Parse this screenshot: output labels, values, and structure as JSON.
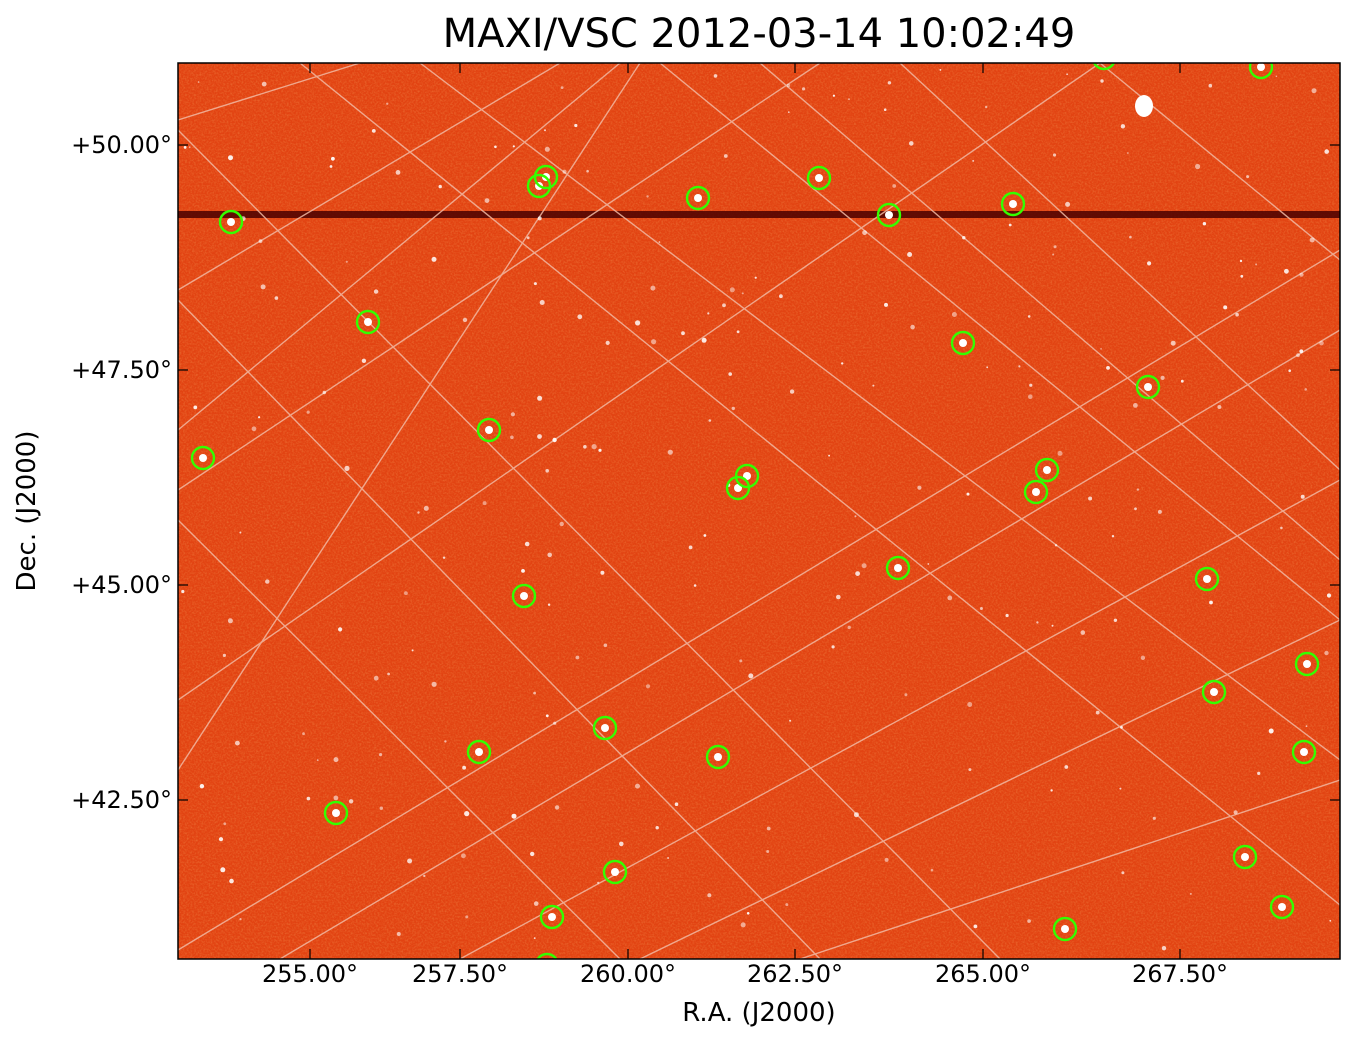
{
  "figure": {
    "title": "MAXI/VSC 2012-03-14 10:02:49",
    "xlabel": "R.A. (J2000)",
    "ylabel": "Dec. (J2000)",
    "xticks": [
      "255.00°",
      "257.50°",
      "260.00°",
      "262.50°",
      "265.00°",
      "267.50°"
    ],
    "yticks": [
      "+50.00°",
      "+47.50°",
      "+45.00°",
      "+42.50°"
    ]
  },
  "image": {
    "type": "sky survey image with coordinate grid",
    "colormap": "red-orange heat",
    "background_color": "#e24312",
    "stripe_color": "#4a0000",
    "grid_color": "#f2b9a3",
    "marker_color": "#33ff00",
    "marker": "circle"
  }
}
